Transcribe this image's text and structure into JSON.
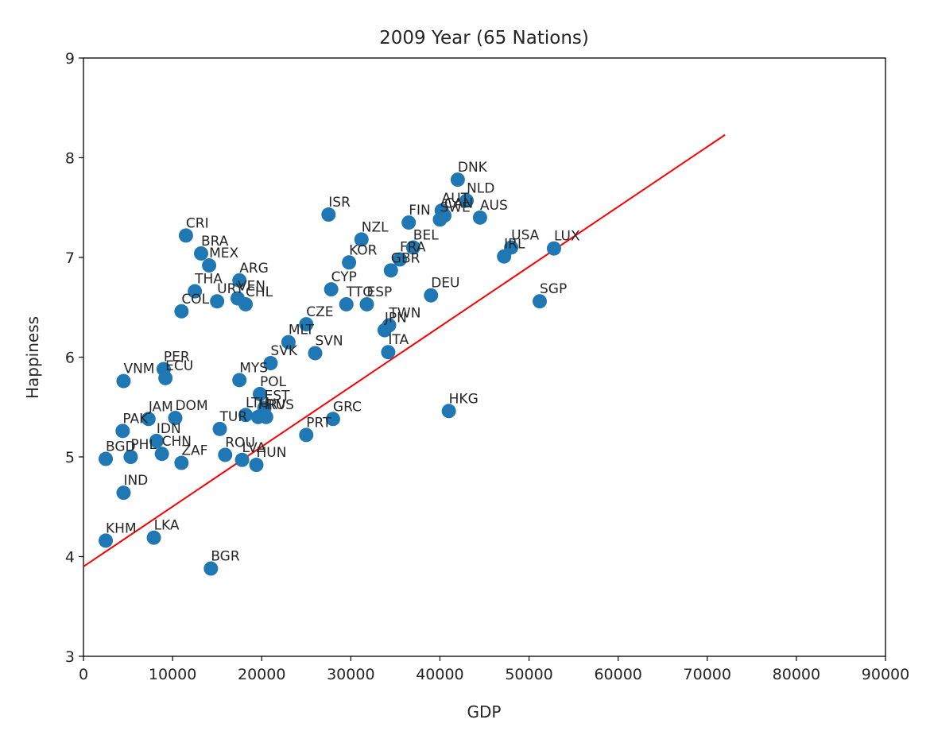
{
  "chart_data": {
    "type": "scatter",
    "title": "2009 Year (65 Nations)",
    "xlabel": "GDP",
    "ylabel": "Happiness",
    "xlim": [
      0,
      90000
    ],
    "ylim": [
      3,
      9
    ],
    "xticks": [
      0,
      10000,
      20000,
      30000,
      40000,
      50000,
      60000,
      70000,
      80000,
      90000
    ],
    "yticks": [
      3,
      4,
      5,
      6,
      7,
      8,
      9
    ],
    "grid": false,
    "colors": {
      "points": "#1f77b4",
      "trend": "#ff0000",
      "axes": "#000000"
    },
    "trend_line": {
      "x": [
        0,
        72000
      ],
      "y": [
        3.9,
        8.23
      ]
    },
    "points": [
      {
        "label": "DNK",
        "x": 42000,
        "y": 7.78
      },
      {
        "label": "NLD",
        "x": 43000,
        "y": 7.57
      },
      {
        "label": "AUT",
        "x": 40200,
        "y": 7.47
      },
      {
        "label": "CAN",
        "x": 40500,
        "y": 7.42
      },
      {
        "label": "SWE",
        "x": 40000,
        "y": 7.38
      },
      {
        "label": "AUS",
        "x": 44500,
        "y": 7.4
      },
      {
        "label": "FIN",
        "x": 36500,
        "y": 7.35
      },
      {
        "label": "ISR",
        "x": 27500,
        "y": 7.43
      },
      {
        "label": "NZL",
        "x": 31200,
        "y": 7.18
      },
      {
        "label": "BEL",
        "x": 37000,
        "y": 7.1
      },
      {
        "label": "FRA",
        "x": 35500,
        "y": 6.98
      },
      {
        "label": "GBR",
        "x": 34500,
        "y": 6.87
      },
      {
        "label": "KOR",
        "x": 29800,
        "y": 6.95
      },
      {
        "label": "USA",
        "x": 48000,
        "y": 7.1
      },
      {
        "label": "IRL",
        "x": 47200,
        "y": 7.01
      },
      {
        "label": "LUX",
        "x": 52800,
        "y": 7.09
      },
      {
        "label": "SGP",
        "x": 51200,
        "y": 6.56
      },
      {
        "label": "DEU",
        "x": 39000,
        "y": 6.62
      },
      {
        "label": "CYP",
        "x": 27800,
        "y": 6.68
      },
      {
        "label": "TTO",
        "x": 29500,
        "y": 6.53
      },
      {
        "label": "ESP",
        "x": 31800,
        "y": 6.53
      },
      {
        "label": "CZE",
        "x": 25000,
        "y": 6.33
      },
      {
        "label": "TWN",
        "x": 34300,
        "y": 6.32
      },
      {
        "label": "JPN",
        "x": 33800,
        "y": 6.27
      },
      {
        "label": "MLT",
        "x": 23000,
        "y": 6.15
      },
      {
        "label": "SVN",
        "x": 26000,
        "y": 6.04
      },
      {
        "label": "ITA",
        "x": 34200,
        "y": 6.05
      },
      {
        "label": "SVK",
        "x": 21000,
        "y": 5.94
      },
      {
        "label": "HKG",
        "x": 41000,
        "y": 5.46
      },
      {
        "label": "GRC",
        "x": 28000,
        "y": 5.38
      },
      {
        "label": "PRT",
        "x": 25000,
        "y": 5.22
      },
      {
        "label": "CRI",
        "x": 11500,
        "y": 7.22
      },
      {
        "label": "BRA",
        "x": 13200,
        "y": 7.04
      },
      {
        "label": "MEX",
        "x": 14100,
        "y": 6.92
      },
      {
        "label": "ARG",
        "x": 17500,
        "y": 6.77
      },
      {
        "label": "THA",
        "x": 12500,
        "y": 6.66
      },
      {
        "label": "URY",
        "x": 15000,
        "y": 6.56
      },
      {
        "label": "VEN",
        "x": 17300,
        "y": 6.59
      },
      {
        "label": "CHL",
        "x": 18200,
        "y": 6.53
      },
      {
        "label": "COL",
        "x": 11000,
        "y": 6.46
      },
      {
        "label": "PER",
        "x": 9000,
        "y": 5.88
      },
      {
        "label": "ECU",
        "x": 9200,
        "y": 5.79
      },
      {
        "label": "VNM",
        "x": 4500,
        "y": 5.76
      },
      {
        "label": "MYS",
        "x": 17500,
        "y": 5.77
      },
      {
        "label": "POL",
        "x": 19800,
        "y": 5.63
      },
      {
        "label": "EST",
        "x": 20300,
        "y": 5.49
      },
      {
        "label": "LTU",
        "x": 18200,
        "y": 5.42
      },
      {
        "label": "HRV",
        "x": 19600,
        "y": 5.4
      },
      {
        "label": "RUS",
        "x": 20500,
        "y": 5.4
      },
      {
        "label": "JAM",
        "x": 7300,
        "y": 5.38
      },
      {
        "label": "DOM",
        "x": 10300,
        "y": 5.39
      },
      {
        "label": "TUR",
        "x": 15300,
        "y": 5.28
      },
      {
        "label": "PAK",
        "x": 4400,
        "y": 5.26
      },
      {
        "label": "IDN",
        "x": 8200,
        "y": 5.16
      },
      {
        "label": "CHN",
        "x": 8800,
        "y": 5.03
      },
      {
        "label": "PHL",
        "x": 5300,
        "y": 5.0
      },
      {
        "label": "BGD",
        "x": 2500,
        "y": 4.98
      },
      {
        "label": "ZAF",
        "x": 11000,
        "y": 4.94
      },
      {
        "label": "ROU",
        "x": 15900,
        "y": 5.02
      },
      {
        "label": "LVA",
        "x": 17800,
        "y": 4.97
      },
      {
        "label": "HUN",
        "x": 19400,
        "y": 4.92
      },
      {
        "label": "IND",
        "x": 4500,
        "y": 4.64
      },
      {
        "label": "KHM",
        "x": 2500,
        "y": 4.16
      },
      {
        "label": "LKA",
        "x": 7900,
        "y": 4.19
      },
      {
        "label": "BGR",
        "x": 14300,
        "y": 3.88
      }
    ]
  }
}
